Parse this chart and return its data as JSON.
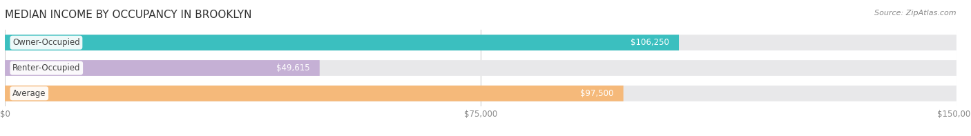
{
  "title": "MEDIAN INCOME BY OCCUPANCY IN BROOKLYN",
  "source_text": "Source: ZipAtlas.com",
  "categories": [
    "Owner-Occupied",
    "Renter-Occupied",
    "Average"
  ],
  "values": [
    106250,
    49615,
    97500
  ],
  "value_labels": [
    "$106,250",
    "$49,615",
    "$97,500"
  ],
  "bar_colors": [
    "#3bbfbf",
    "#c5b0d5",
    "#f5b97a"
  ],
  "bar_bg_color": "#e8e8ea",
  "xlim": [
    0,
    150000
  ],
  "xtick_values": [
    0,
    75000,
    150000
  ],
  "xtick_labels": [
    "$0",
    "$75,000",
    "$150,000"
  ],
  "bar_height": 0.62,
  "bar_gap": 0.38,
  "title_fontsize": 11,
  "source_fontsize": 8,
  "label_fontsize": 8.5,
  "tick_fontsize": 8.5,
  "value_label_color": "#ffffff",
  "category_label_color": "#444444",
  "background_color": "#ffffff",
  "grid_color": "#cccccc"
}
